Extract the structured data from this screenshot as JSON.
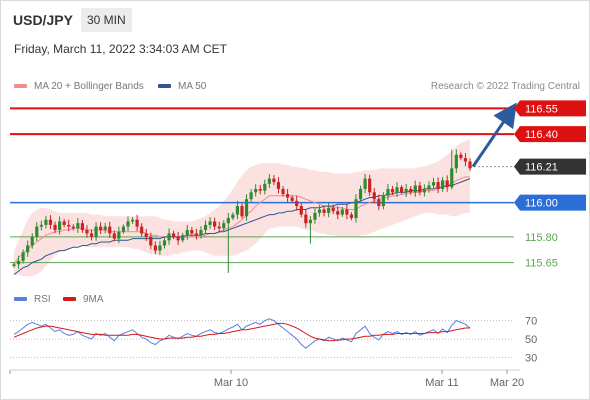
{
  "header": {
    "symbol": "USD/JPY",
    "timeframe": "30 MIN",
    "date": "Friday, March 11, 2022 3:34:03 AM CET"
  },
  "credit": "Research © 2022 Trading Central",
  "colors": {
    "resistance": "#dd1111",
    "pivot": "#2b6fd6",
    "support": "#5aa84f",
    "last_price": "#333333",
    "candle_up": "#2e8b2e",
    "candle_down": "#cc2222",
    "bollinger_fill": "#fcdede",
    "ma20": "#f28b8b",
    "ma50": "#2f5595",
    "arrow": "#2f5aa0",
    "rsi": "#5a7fe0",
    "rsi_ma": "#d11a1a"
  },
  "chart_data": [
    {
      "type": "candlestick",
      "legend": [
        {
          "label": "MA 20 + Bollinger Bands",
          "color": "#f28b8b"
        },
        {
          "label": "MA 50",
          "color": "#2f5595"
        }
      ],
      "x_labels": [
        "Mar 10",
        "Mar 11",
        "Mar 20"
      ],
      "ylim": [
        115.56,
        116.64
      ],
      "levels": [
        {
          "value": 116.55,
          "label": "116.55",
          "kind": "resistance"
        },
        {
          "value": 116.4,
          "label": "116.40",
          "kind": "resistance"
        },
        {
          "value": 116.21,
          "label": "116.21",
          "kind": "last_price"
        },
        {
          "value": 116.0,
          "label": "116.00",
          "kind": "pivot"
        },
        {
          "value": 115.8,
          "label": "115.80",
          "kind": "support"
        },
        {
          "value": 115.65,
          "label": "115.65",
          "kind": "support"
        }
      ],
      "forecast_arrow": {
        "from": 116.21,
        "to": 116.55
      },
      "close": [
        115.64,
        115.66,
        115.71,
        115.75,
        115.8,
        115.86,
        115.87,
        115.9,
        115.87,
        115.84,
        115.89,
        115.87,
        115.86,
        115.85,
        115.88,
        115.84,
        115.82,
        115.8,
        115.86,
        115.84,
        115.86,
        115.82,
        115.79,
        115.83,
        115.86,
        115.89,
        115.9,
        115.86,
        115.82,
        115.8,
        115.75,
        115.72,
        115.75,
        115.78,
        115.82,
        115.8,
        115.78,
        115.81,
        115.84,
        115.82,
        115.81,
        115.84,
        115.87,
        115.89,
        115.86,
        115.85,
        115.88,
        115.91,
        115.93,
        115.98,
        115.92,
        116.02,
        116.06,
        116.08,
        116.07,
        116.11,
        116.14,
        116.12,
        116.08,
        116.05,
        116.03,
        116.01,
        115.98,
        115.93,
        115.88,
        115.9,
        115.94,
        115.96,
        115.94,
        115.97,
        115.95,
        115.93,
        115.96,
        115.93,
        115.91,
        116.02,
        116.08,
        116.14,
        116.06,
        116.02,
        115.98,
        116.04,
        116.08,
        116.06,
        116.09,
        116.06,
        116.08,
        116.06,
        116.1,
        116.06,
        116.08,
        116.1,
        116.12,
        116.08,
        116.13,
        116.09,
        116.2,
        116.28,
        116.26,
        116.24,
        116.2
      ],
      "ma20": [
        115.64,
        115.68,
        115.7,
        115.73,
        115.75,
        115.77,
        115.79,
        115.81,
        115.82,
        115.83,
        115.83,
        115.84,
        115.84,
        115.85,
        115.85,
        115.85,
        115.84,
        115.84,
        115.84,
        115.84,
        115.84,
        115.83,
        115.83,
        115.83,
        115.83,
        115.83,
        115.83,
        115.83,
        115.83,
        115.82,
        115.81,
        115.81,
        115.8,
        115.8,
        115.8,
        115.8,
        115.8,
        115.8,
        115.8,
        115.8,
        115.8,
        115.8,
        115.81,
        115.82,
        115.82,
        115.83,
        115.84,
        115.85,
        115.86,
        115.88,
        115.9,
        115.93,
        115.95,
        115.98,
        116.0,
        116.02,
        116.04,
        116.04,
        116.04,
        116.04,
        116.04,
        116.04,
        116.04,
        116.03,
        116.02,
        116.01,
        116.0,
        115.99,
        115.98,
        115.98,
        115.97,
        115.97,
        115.97,
        115.96,
        115.96,
        115.96,
        115.98,
        115.99,
        116.0,
        116.01,
        116.02,
        116.03,
        116.03,
        116.04,
        116.04,
        116.05,
        116.05,
        116.06,
        116.06,
        116.06,
        116.07,
        116.07,
        116.07,
        116.08,
        116.09,
        116.1,
        116.11,
        116.13,
        116.14,
        116.15,
        116.15
      ],
      "ma50": [
        115.58,
        115.6,
        115.62,
        115.63,
        115.65,
        115.66,
        115.67,
        115.69,
        115.7,
        115.71,
        115.72,
        115.72,
        115.73,
        115.74,
        115.74,
        115.75,
        115.75,
        115.76,
        115.76,
        115.77,
        115.77,
        115.77,
        115.78,
        115.78,
        115.78,
        115.78,
        115.79,
        115.79,
        115.79,
        115.79,
        115.79,
        115.79,
        115.79,
        115.8,
        115.8,
        115.8,
        115.8,
        115.8,
        115.81,
        115.81,
        115.81,
        115.81,
        115.82,
        115.82,
        115.82,
        115.83,
        115.83,
        115.84,
        115.85,
        115.86,
        115.87,
        115.88,
        115.89,
        115.9,
        115.91,
        115.92,
        115.93,
        115.93,
        115.94,
        115.94,
        115.95,
        115.95,
        115.96,
        115.96,
        115.96,
        115.97,
        115.97,
        115.97,
        115.98,
        115.98,
        115.98,
        115.99,
        115.99,
        115.99,
        116.0,
        116.0,
        116.01,
        116.02,
        116.03,
        116.03,
        116.04,
        116.04,
        116.05,
        116.05,
        116.06,
        116.06,
        116.06,
        116.07,
        116.07,
        116.07,
        116.08,
        116.08,
        116.08,
        116.09,
        116.09,
        116.1,
        116.1,
        116.11,
        116.12,
        116.13,
        116.14
      ],
      "bollinger_upper": [
        115.72,
        115.78,
        115.84,
        115.9,
        115.94,
        115.96,
        115.97,
        115.97,
        115.96,
        115.95,
        115.94,
        115.94,
        115.94,
        115.94,
        115.94,
        115.94,
        115.94,
        115.93,
        115.93,
        115.93,
        115.92,
        115.92,
        115.92,
        115.92,
        115.92,
        115.92,
        115.92,
        115.92,
        115.92,
        115.92,
        115.92,
        115.92,
        115.91,
        115.9,
        115.9,
        115.89,
        115.89,
        115.89,
        115.89,
        115.89,
        115.9,
        115.91,
        115.92,
        115.94,
        115.96,
        115.98,
        116.01,
        116.04,
        116.08,
        116.12,
        116.16,
        116.19,
        116.21,
        116.22,
        116.23,
        116.23,
        116.23,
        116.23,
        116.23,
        116.22,
        116.22,
        116.21,
        116.21,
        116.2,
        116.2,
        116.19,
        116.19,
        116.18,
        116.18,
        116.18,
        116.17,
        116.17,
        116.17,
        116.17,
        116.17,
        116.18,
        116.18,
        116.19,
        116.19,
        116.19,
        116.2,
        116.2,
        116.2,
        116.2,
        116.2,
        116.2,
        116.2,
        116.2,
        116.2,
        116.21,
        116.21,
        116.22,
        116.23,
        116.24,
        116.26,
        116.28,
        116.3,
        116.33,
        116.35,
        116.36,
        116.37
      ],
      "bollinger_lower": [
        115.58,
        115.58,
        115.57,
        115.57,
        115.57,
        115.58,
        115.6,
        115.63,
        115.66,
        115.69,
        115.71,
        115.72,
        115.73,
        115.74,
        115.75,
        115.75,
        115.74,
        115.74,
        115.74,
        115.74,
        115.74,
        115.74,
        115.74,
        115.74,
        115.74,
        115.74,
        115.73,
        115.73,
        115.72,
        115.71,
        115.7,
        115.7,
        115.69,
        115.69,
        115.69,
        115.7,
        115.7,
        115.71,
        115.71,
        115.72,
        115.72,
        115.72,
        115.71,
        115.7,
        115.69,
        115.69,
        115.69,
        115.69,
        115.69,
        115.7,
        115.71,
        115.72,
        115.74,
        115.76,
        115.79,
        115.82,
        115.85,
        115.85,
        115.86,
        115.86,
        115.86,
        115.86,
        115.86,
        115.85,
        115.84,
        115.84,
        115.83,
        115.82,
        115.82,
        115.81,
        115.81,
        115.8,
        115.8,
        115.8,
        115.8,
        115.8,
        115.81,
        115.81,
        115.82,
        115.83,
        115.84,
        115.85,
        115.86,
        115.87,
        115.88,
        115.89,
        115.9,
        115.91,
        115.92,
        115.93,
        115.94,
        115.94,
        115.94,
        115.93,
        115.93,
        115.93,
        115.92,
        115.92,
        115.93,
        115.94,
        115.94
      ]
    },
    {
      "type": "line",
      "legend": [
        {
          "label": "RSI",
          "color": "#5a7fe0"
        },
        {
          "label": "9MA",
          "color": "#d11a1a"
        }
      ],
      "y_ticks": [
        "70",
        "50",
        "30"
      ],
      "ylim": [
        25,
        75
      ],
      "series": [
        {
          "name": "RSI",
          "values": [
            55,
            58,
            62,
            66,
            68,
            66,
            64,
            66,
            62,
            58,
            60,
            56,
            54,
            55,
            58,
            54,
            52,
            50,
            56,
            54,
            56,
            52,
            48,
            54,
            56,
            58,
            60,
            56,
            52,
            50,
            46,
            44,
            48,
            50,
            54,
            52,
            50,
            53,
            56,
            54,
            53,
            56,
            58,
            60,
            57,
            56,
            58,
            61,
            63,
            66,
            60,
            64,
            66,
            68,
            66,
            70,
            72,
            70,
            66,
            62,
            58,
            54,
            50,
            44,
            40,
            44,
            48,
            50,
            48,
            52,
            50,
            48,
            51,
            49,
            47,
            56,
            60,
            64,
            56,
            52,
            49,
            55,
            58,
            56,
            58,
            55,
            57,
            55,
            58,
            54,
            56,
            58,
            60,
            56,
            61,
            57,
            65,
            70,
            68,
            66,
            62
          ]
        },
        {
          "name": "9MA",
          "values": [
            52,
            54,
            56,
            58,
            60,
            62,
            63,
            64,
            64,
            63,
            62,
            61,
            60,
            59,
            58,
            57,
            56,
            55,
            55,
            55,
            54,
            54,
            54,
            54,
            54,
            54,
            55,
            55,
            54,
            53,
            52,
            51,
            50,
            50,
            51,
            51,
            51,
            51,
            52,
            52,
            53,
            53,
            54,
            55,
            55,
            56,
            56,
            57,
            58,
            59,
            60,
            60,
            61,
            62,
            63,
            64,
            65,
            66,
            67,
            67,
            66,
            64,
            62,
            59,
            56,
            53,
            51,
            50,
            49,
            48,
            48,
            49,
            49,
            50,
            50,
            51,
            52,
            53,
            53,
            54,
            54,
            55,
            55,
            55,
            56,
            56,
            56,
            56,
            56,
            56,
            56,
            57,
            57,
            57,
            58,
            58,
            59,
            60,
            61,
            62,
            62
          ]
        }
      ]
    }
  ]
}
